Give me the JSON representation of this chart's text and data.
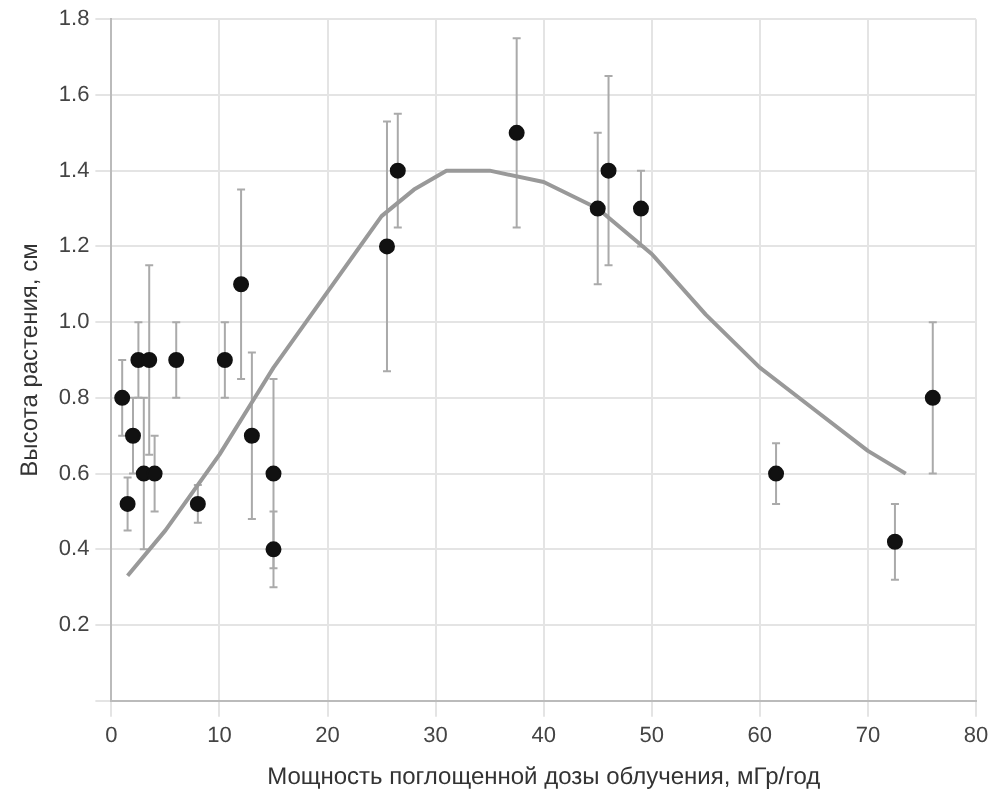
{
  "chart_data": {
    "type": "scatter",
    "xlabel": "Мощность поглощенной дозы облучения, мГр/год",
    "ylabel": "Высота растения, см",
    "xlim": [
      0,
      80
    ],
    "xticks": [
      0,
      10,
      20,
      30,
      40,
      50,
      60,
      70,
      80
    ],
    "ylim": [
      0,
      1.8
    ],
    "yticks": [
      {
        "value": 0,
        "label": null
      },
      {
        "value": 0.2,
        "label": "0.2"
      },
      {
        "value": 0.4,
        "label": "0.4"
      },
      {
        "value": 0.6,
        "label": "0.6"
      },
      {
        "value": 0.8,
        "label": "0.8"
      },
      {
        "value": 1,
        "label": "1.0"
      },
      {
        "value": 1.2,
        "label": "1.2"
      },
      {
        "value": 1.4,
        "label": "1.4"
      },
      {
        "value": 1.6,
        "label": "1.6"
      },
      {
        "value": 1.8,
        "label": "1.8"
      }
    ],
    "grid": true,
    "legend": false,
    "marker": "circle",
    "series": [
      {
        "color": "#111111",
        "x": [
          1.5,
          1,
          2,
          2.5,
          3,
          3.5,
          4,
          6,
          8,
          10.5,
          12,
          13,
          15,
          15,
          25.5,
          26.5,
          37.5,
          45,
          46,
          49,
          61.5,
          72.5,
          76
        ],
        "values": [
          0.52,
          0.8,
          0.7,
          0.9,
          0.6,
          0.9,
          0.6,
          0.9,
          0.52,
          0.9,
          1.1,
          0.7,
          0.6,
          0.4,
          1.2,
          1.4,
          1.5,
          1.3,
          1.4,
          1.3,
          0.6,
          0.42,
          0.8
        ],
        "errors": [
          0.07,
          0.1,
          0.1,
          0.1,
          0.2,
          0.25,
          0.1,
          0.1,
          0.05,
          0.1,
          0.25,
          0.22,
          0.25,
          0.1,
          0.33,
          0.15,
          0.25,
          0.2,
          0.25,
          0.1,
          0.08,
          0.1,
          0.2
        ]
      },
      {
        "type": "line",
        "color": "#999999",
        "marker": "none",
        "x": [
          1.5,
          5,
          10,
          15,
          20,
          25,
          28,
          31,
          35,
          40,
          45,
          50,
          55,
          60,
          65,
          70,
          73.5
        ],
        "values": [
          0.33,
          0.45,
          0.65,
          0.88,
          1.08,
          1.28,
          1.35,
          1.4,
          1.4,
          1.37,
          1.3,
          1.18,
          1.02,
          0.88,
          0.77,
          0.66,
          0.6
        ]
      }
    ]
  }
}
